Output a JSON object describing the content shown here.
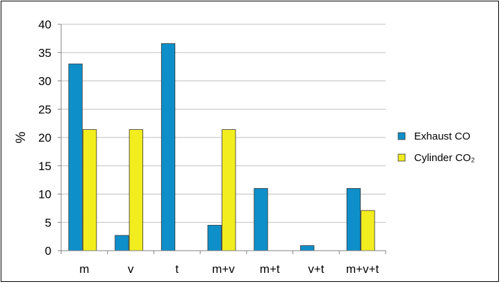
{
  "chart_data": {
    "type": "bar",
    "categories": [
      "m",
      "v",
      "t",
      "m+v",
      "m+t",
      "v+t",
      "m+v+t"
    ],
    "series": [
      {
        "name": "Exhaust CO",
        "color": "#0e8fc9",
        "values": [
          33.0,
          2.7,
          36.6,
          4.5,
          11.0,
          0.9,
          11.0
        ]
      },
      {
        "name": "Cylinder CO₂",
        "color": "#f2ed1e",
        "values": [
          21.4,
          21.4,
          0,
          21.4,
          0,
          0,
          7.1
        ]
      }
    ],
    "title": "",
    "xlabel": "",
    "ylabel": "%",
    "ylim": [
      0,
      40
    ],
    "yticks": [
      "0",
      "5",
      "10",
      "15",
      "20",
      "25",
      "30",
      "35",
      "40"
    ],
    "grid": true,
    "legend_position": "right"
  }
}
